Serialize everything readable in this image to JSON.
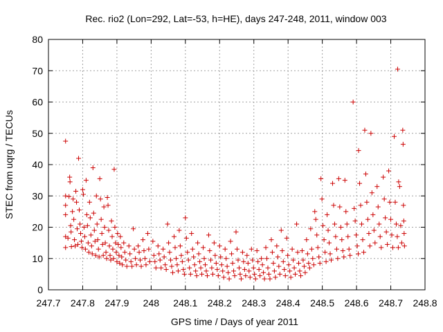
{
  "chart_data": {
    "type": "scatter",
    "title": "Rec. rio2 (Lon=292, Lat=-53, h=HE), days 247-248, 2011, window 003",
    "xlabel": "GPS time / Days of year 2011",
    "ylabel": "STEC from uqrg / TECUs",
    "xlim": [
      247.7,
      248.8
    ],
    "ylim": [
      0,
      80
    ],
    "xticks": [
      "247.7",
      "247.8",
      "247.9",
      "248",
      "248.1",
      "248.2",
      "248.3",
      "248.4",
      "248.5",
      "248.6",
      "248.7",
      "248.8"
    ],
    "yticks": [
      "0",
      "10",
      "20",
      "30",
      "40",
      "50",
      "60",
      "70",
      "80"
    ],
    "grid": true,
    "marker": "plus",
    "color": "#cc0000",
    "points": [
      [
        247.75,
        47.5
      ],
      [
        247.75,
        30.0
      ],
      [
        247.75,
        27.0
      ],
      [
        247.75,
        24.0
      ],
      [
        247.75,
        17.0
      ],
      [
        247.75,
        13.5
      ],
      [
        247.757,
        16.5
      ],
      [
        247.76,
        29.8
      ],
      [
        247.762,
        36.0
      ],
      [
        247.763,
        34.5
      ],
      [
        247.765,
        20.5
      ],
      [
        247.766,
        18.5
      ],
      [
        247.767,
        13.8
      ],
      [
        247.77,
        25.0
      ],
      [
        247.772,
        29.0
      ],
      [
        247.774,
        22.5
      ],
      [
        247.776,
        16.0
      ],
      [
        247.778,
        14.0
      ],
      [
        247.78,
        31.5
      ],
      [
        247.782,
        28.0
      ],
      [
        247.784,
        19.5
      ],
      [
        247.786,
        14.5
      ],
      [
        247.788,
        42.0
      ],
      [
        247.79,
        25.5
      ],
      [
        247.792,
        21.0
      ],
      [
        247.794,
        18.0
      ],
      [
        247.796,
        15.5
      ],
      [
        247.798,
        13.5
      ],
      [
        247.8,
        32.0
      ],
      [
        247.802,
        30.5
      ],
      [
        247.804,
        20.0
      ],
      [
        247.806,
        17.0
      ],
      [
        247.808,
        13.0
      ],
      [
        247.81,
        35.0
      ],
      [
        247.812,
        24.0
      ],
      [
        247.814,
        20.5
      ],
      [
        247.816,
        15.0
      ],
      [
        247.818,
        12.0
      ],
      [
        247.82,
        28.0
      ],
      [
        247.822,
        23.0
      ],
      [
        247.824,
        17.5
      ],
      [
        247.826,
        14.0
      ],
      [
        247.828,
        11.5
      ],
      [
        247.83,
        39.0
      ],
      [
        247.832,
        24.5
      ],
      [
        247.834,
        19.0
      ],
      [
        247.836,
        15.5
      ],
      [
        247.838,
        11.0
      ],
      [
        247.84,
        30.0
      ],
      [
        247.842,
        21.0
      ],
      [
        247.844,
        16.0
      ],
      [
        247.846,
        13.0
      ],
      [
        247.848,
        10.5
      ],
      [
        247.85,
        35.5
      ],
      [
        247.852,
        29.0
      ],
      [
        247.854,
        22.5
      ],
      [
        247.856,
        18.0
      ],
      [
        247.858,
        14.5
      ],
      [
        247.86,
        11.0
      ],
      [
        247.862,
        26.5
      ],
      [
        247.864,
        20.0
      ],
      [
        247.866,
        15.0
      ],
      [
        247.868,
        12.0
      ],
      [
        247.87,
        10.0
      ],
      [
        247.872,
        29.5
      ],
      [
        247.874,
        27.0
      ],
      [
        247.876,
        19.0
      ],
      [
        247.878,
        14.0
      ],
      [
        247.88,
        11.0
      ],
      [
        247.882,
        9.5
      ],
      [
        247.884,
        22.0
      ],
      [
        247.886,
        17.0
      ],
      [
        247.888,
        13.0
      ],
      [
        247.89,
        10.0
      ],
      [
        247.892,
        38.5
      ],
      [
        247.894,
        20.0
      ],
      [
        247.896,
        15.0
      ],
      [
        247.898,
        12.0
      ],
      [
        247.9,
        9.0
      ],
      [
        247.902,
        18.0
      ],
      [
        247.904,
        14.5
      ],
      [
        247.906,
        11.0
      ],
      [
        247.908,
        8.5
      ],
      [
        247.91,
        17.0
      ],
      [
        247.912,
        13.5
      ],
      [
        247.914,
        10.5
      ],
      [
        247.916,
        8.0
      ],
      [
        247.92,
        15.0
      ],
      [
        247.923,
        12.0
      ],
      [
        247.926,
        9.5
      ],
      [
        247.929,
        7.5
      ],
      [
        247.935,
        14.0
      ],
      [
        247.938,
        11.5
      ],
      [
        247.941,
        9.0
      ],
      [
        247.944,
        7.5
      ],
      [
        247.948,
        19.5
      ],
      [
        247.951,
        13.0
      ],
      [
        247.954,
        10.0
      ],
      [
        247.957,
        8.0
      ],
      [
        247.962,
        14.0
      ],
      [
        247.965,
        12.0
      ],
      [
        247.968,
        9.5
      ],
      [
        247.971,
        7.5
      ],
      [
        247.976,
        16.0
      ],
      [
        247.979,
        12.5
      ],
      [
        247.982,
        10.0
      ],
      [
        247.985,
        8.0
      ],
      [
        247.99,
        18.0
      ],
      [
        247.993,
        13.0
      ],
      [
        247.996,
        9.0
      ],
      [
        248.005,
        15.5
      ],
      [
        248.008,
        11.0
      ],
      [
        248.011,
        9.0
      ],
      [
        248.014,
        7.0
      ],
      [
        248.02,
        14.0
      ],
      [
        248.023,
        11.5
      ],
      [
        248.026,
        9.5
      ],
      [
        248.029,
        7.0
      ],
      [
        248.035,
        13.0
      ],
      [
        248.038,
        10.5
      ],
      [
        248.041,
        8.0
      ],
      [
        248.044,
        6.5
      ],
      [
        248.048,
        21.0
      ],
      [
        248.051,
        15.0
      ],
      [
        248.054,
        12.0
      ],
      [
        248.057,
        9.5
      ],
      [
        248.06,
        7.5
      ],
      [
        248.063,
        5.5
      ],
      [
        248.067,
        17.0
      ],
      [
        248.07,
        13.5
      ],
      [
        248.073,
        10.0
      ],
      [
        248.076,
        8.0
      ],
      [
        248.079,
        6.0
      ],
      [
        248.082,
        19.0
      ],
      [
        248.085,
        14.0
      ],
      [
        248.088,
        11.0
      ],
      [
        248.091,
        9.0
      ],
      [
        248.094,
        6.5
      ],
      [
        248.097,
        5.0
      ],
      [
        248.1,
        23.0
      ],
      [
        248.103,
        16.5
      ],
      [
        248.106,
        12.0
      ],
      [
        248.109,
        9.5
      ],
      [
        248.112,
        7.0
      ],
      [
        248.115,
        5.0
      ],
      [
        248.118,
        18.0
      ],
      [
        248.121,
        13.0
      ],
      [
        248.124,
        10.5
      ],
      [
        248.127,
        8.0
      ],
      [
        248.13,
        6.0
      ],
      [
        248.133,
        4.5
      ],
      [
        248.136,
        15.0
      ],
      [
        248.139,
        11.5
      ],
      [
        248.142,
        9.0
      ],
      [
        248.145,
        7.0
      ],
      [
        248.148,
        5.0
      ],
      [
        248.152,
        13.5
      ],
      [
        248.155,
        10.0
      ],
      [
        248.158,
        8.0
      ],
      [
        248.161,
        6.0
      ],
      [
        248.164,
        4.5
      ],
      [
        248.168,
        17.5
      ],
      [
        248.171,
        12.5
      ],
      [
        248.174,
        9.5
      ],
      [
        248.177,
        7.0
      ],
      [
        248.18,
        5.0
      ],
      [
        248.184,
        15.0
      ],
      [
        248.187,
        11.0
      ],
      [
        248.19,
        8.5
      ],
      [
        248.193,
        6.5
      ],
      [
        248.196,
        4.5
      ],
      [
        248.2,
        14.0
      ],
      [
        248.203,
        10.5
      ],
      [
        248.206,
        8.0
      ],
      [
        248.209,
        6.0
      ],
      [
        248.212,
        4.0
      ],
      [
        248.216,
        13.0
      ],
      [
        248.219,
        10.0
      ],
      [
        248.222,
        7.5
      ],
      [
        248.225,
        5.5
      ],
      [
        248.228,
        3.5
      ],
      [
        248.232,
        15.5
      ],
      [
        248.235,
        11.5
      ],
      [
        248.238,
        8.5
      ],
      [
        248.241,
        6.0
      ],
      [
        248.244,
        4.5
      ],
      [
        248.248,
        18.5
      ],
      [
        248.251,
        13.0
      ],
      [
        248.254,
        9.5
      ],
      [
        248.257,
        7.0
      ],
      [
        248.26,
        5.0
      ],
      [
        248.263,
        3.5
      ],
      [
        248.267,
        12.0
      ],
      [
        248.27,
        9.0
      ],
      [
        248.273,
        6.5
      ],
      [
        248.276,
        4.5
      ],
      [
        248.28,
        11.0
      ],
      [
        248.283,
        8.5
      ],
      [
        248.286,
        6.0
      ],
      [
        248.289,
        4.0
      ],
      [
        248.293,
        13.0
      ],
      [
        248.296,
        9.5
      ],
      [
        248.299,
        7.0
      ],
      [
        248.302,
        5.0
      ],
      [
        248.305,
        3.5
      ],
      [
        248.309,
        12.5
      ],
      [
        248.312,
        9.0
      ],
      [
        248.315,
        6.5
      ],
      [
        248.318,
        4.5
      ],
      [
        248.322,
        10.0
      ],
      [
        248.325,
        8.0
      ],
      [
        248.328,
        5.5
      ],
      [
        248.331,
        3.5
      ],
      [
        248.335,
        13.5
      ],
      [
        248.338,
        10.0
      ],
      [
        248.341,
        7.0
      ],
      [
        248.344,
        5.0
      ],
      [
        248.347,
        3.5
      ],
      [
        248.351,
        16.0
      ],
      [
        248.354,
        12.0
      ],
      [
        248.357,
        8.5
      ],
      [
        248.36,
        6.0
      ],
      [
        248.363,
        4.0
      ],
      [
        248.367,
        14.0
      ],
      [
        248.37,
        10.5
      ],
      [
        248.373,
        7.5
      ],
      [
        248.376,
        5.0
      ],
      [
        248.38,
        19.0
      ],
      [
        248.383,
        12.5
      ],
      [
        248.386,
        9.0
      ],
      [
        248.389,
        6.5
      ],
      [
        248.392,
        4.5
      ],
      [
        248.396,
        16.5
      ],
      [
        248.399,
        11.0
      ],
      [
        248.402,
        8.0
      ],
      [
        248.405,
        6.0
      ],
      [
        248.408,
        4.0
      ],
      [
        248.412,
        13.0
      ],
      [
        248.415,
        9.5
      ],
      [
        248.418,
        7.0
      ],
      [
        248.421,
        5.0
      ],
      [
        248.425,
        21.0
      ],
      [
        248.428,
        12.0
      ],
      [
        248.431,
        8.5
      ],
      [
        248.434,
        6.0
      ],
      [
        248.437,
        4.5
      ],
      [
        248.441,
        12.5
      ],
      [
        248.444,
        9.5
      ],
      [
        248.447,
        7.5
      ],
      [
        248.45,
        5.5
      ],
      [
        248.454,
        16.0
      ],
      [
        248.457,
        11.5
      ],
      [
        248.46,
        8.5
      ],
      [
        248.463,
        7.0
      ],
      [
        248.466,
        19.5
      ],
      [
        248.469,
        13.0
      ],
      [
        248.472,
        10.0
      ],
      [
        248.475,
        8.0
      ],
      [
        248.478,
        25.0
      ],
      [
        248.481,
        22.5
      ],
      [
        248.484,
        17.5
      ],
      [
        248.487,
        13.5
      ],
      [
        248.49,
        10.5
      ],
      [
        248.493,
        8.5
      ],
      [
        248.496,
        35.5
      ],
      [
        248.499,
        29.0
      ],
      [
        248.502,
        20.5
      ],
      [
        248.505,
        16.0
      ],
      [
        248.508,
        12.0
      ],
      [
        248.511,
        9.0
      ],
      [
        248.514,
        24.0
      ],
      [
        248.517,
        19.0
      ],
      [
        248.52,
        15.0
      ],
      [
        248.523,
        11.5
      ],
      [
        248.526,
        9.5
      ],
      [
        248.53,
        34.0
      ],
      [
        248.533,
        27.0
      ],
      [
        248.536,
        21.0
      ],
      [
        248.539,
        17.0
      ],
      [
        248.542,
        13.0
      ],
      [
        248.545,
        10.0
      ],
      [
        248.548,
        35.5
      ],
      [
        248.551,
        26.5
      ],
      [
        248.554,
        20.0
      ],
      [
        248.557,
        16.0
      ],
      [
        248.56,
        12.5
      ],
      [
        248.563,
        10.5
      ],
      [
        248.566,
        35.0
      ],
      [
        248.569,
        25.0
      ],
      [
        248.572,
        21.0
      ],
      [
        248.575,
        17.0
      ],
      [
        248.578,
        13.0
      ],
      [
        248.581,
        11.0
      ],
      [
        248.59,
        60.0
      ],
      [
        248.593,
        26.0
      ],
      [
        248.596,
        22.0
      ],
      [
        248.599,
        17.5
      ],
      [
        248.602,
        14.0
      ],
      [
        248.605,
        11.5
      ],
      [
        248.606,
        44.5
      ],
      [
        248.609,
        34.0
      ],
      [
        248.612,
        27.0
      ],
      [
        248.615,
        21.0
      ],
      [
        248.618,
        16.0
      ],
      [
        248.621,
        12.0
      ],
      [
        248.624,
        51.0
      ],
      [
        248.627,
        37.0
      ],
      [
        248.63,
        28.0
      ],
      [
        248.633,
        22.5
      ],
      [
        248.636,
        18.0
      ],
      [
        248.639,
        14.0
      ],
      [
        248.642,
        50.0
      ],
      [
        248.645,
        31.0
      ],
      [
        248.648,
        24.0
      ],
      [
        248.651,
        19.0
      ],
      [
        248.654,
        15.0
      ],
      [
        248.66,
        33.0
      ],
      [
        248.663,
        26.5
      ],
      [
        248.666,
        21.0
      ],
      [
        248.669,
        17.0
      ],
      [
        248.672,
        13.5
      ],
      [
        248.678,
        36.0
      ],
      [
        248.681,
        29.0
      ],
      [
        248.684,
        23.0
      ],
      [
        248.687,
        18.5
      ],
      [
        248.69,
        14.5
      ],
      [
        248.694,
        38.0
      ],
      [
        248.697,
        28.0
      ],
      [
        248.7,
        22.5
      ],
      [
        248.703,
        17.5
      ],
      [
        248.706,
        13.5
      ],
      [
        248.71,
        49.0
      ],
      [
        248.713,
        28.0
      ],
      [
        248.716,
        21.0
      ],
      [
        248.719,
        17.0
      ],
      [
        248.722,
        13.5
      ],
      [
        248.72,
        70.5
      ],
      [
        248.723,
        34.5
      ],
      [
        248.726,
        33.0
      ],
      [
        248.729,
        20.5
      ],
      [
        248.732,
        15.0
      ],
      [
        248.735,
        51.0
      ],
      [
        248.736,
        46.5
      ],
      [
        248.737,
        27.0
      ],
      [
        248.738,
        22.0
      ],
      [
        248.739,
        18.0
      ],
      [
        248.74,
        14.0
      ]
    ]
  }
}
